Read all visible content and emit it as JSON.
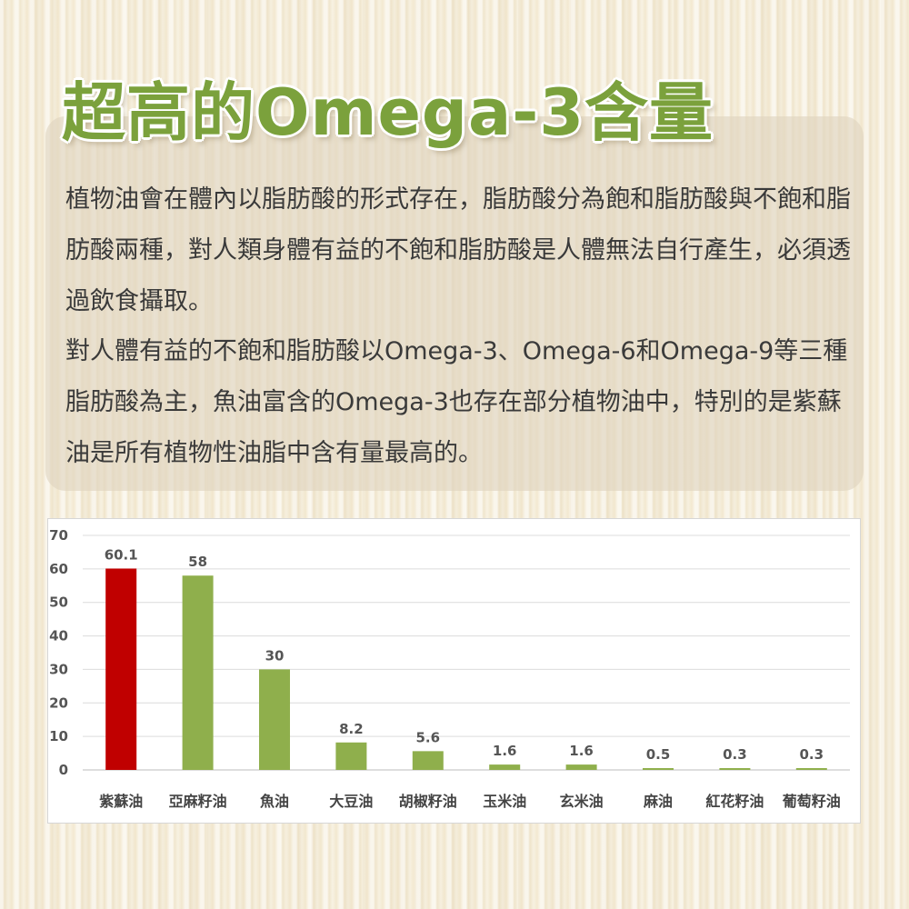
{
  "header": {
    "title": "超高的Omega-3含量"
  },
  "body_text": {
    "paragraph_1": "植物油會在體內以脂肪酸的形式存在，脂肪酸分為飽和脂肪酸與不飽和脂肪酸兩種，對人類身體有益的不飽和脂肪酸是人體無法自行產生，必須透過飲食攝取。",
    "paragraph_2": "對人體有益的不飽和脂肪酸以Omega-3、Omega-6和Omega-9等三種脂肪酸為主，魚油富含的Omega-3也存在部分植物油中，特別的是紫蘇油是所有植物性油脂中含有量最高的。"
  },
  "colors": {
    "title_green": "#7ba13c",
    "highlight_bar": "#c00000",
    "bar": "#8faf4c"
  },
  "chart_data": {
    "type": "bar",
    "title": "",
    "xlabel": "",
    "ylabel": "",
    "categories": [
      "紫蘇油",
      "亞麻籽油",
      "魚油",
      "大豆油",
      "胡椒籽油",
      "玉米油",
      "玄米油",
      "麻油",
      "紅花籽油",
      "葡萄籽油"
    ],
    "values": [
      60.1,
      58,
      30,
      8.2,
      5.6,
      1.6,
      1.6,
      0.5,
      0.3,
      0.3
    ],
    "data_labels": [
      "60.1",
      "58",
      "30",
      "8.2",
      "5.6",
      "1.6",
      "1.6",
      "0.5",
      "0.3",
      "0.3"
    ],
    "highlight_index": 0,
    "ylim": [
      0,
      70
    ],
    "yticks": [
      "0",
      "10",
      "20",
      "30",
      "40",
      "50",
      "60",
      "70"
    ],
    "grid": true,
    "legend": "none"
  }
}
